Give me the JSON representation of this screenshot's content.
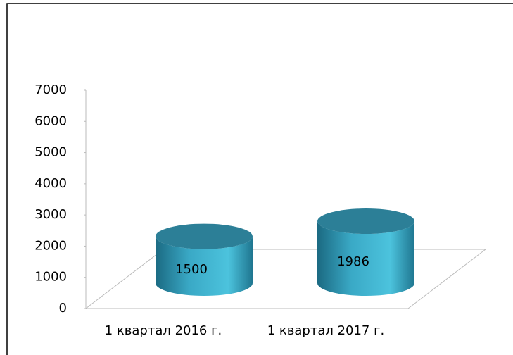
{
  "chart_data": {
    "type": "bar3d",
    "categories": [
      "1 квартал 2016 г.",
      "1 квартал 2017 г."
    ],
    "values": [
      1500,
      1986
    ],
    "color": "#2a8caa",
    "ylim": [
      0,
      7000
    ],
    "yticks": [
      0,
      1000,
      2000,
      3000,
      4000,
      5000,
      6000,
      7000
    ]
  }
}
